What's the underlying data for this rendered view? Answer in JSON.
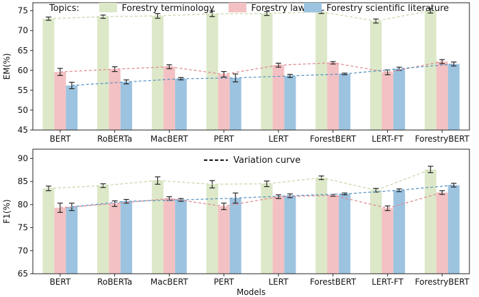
{
  "legend": {
    "title": "Topics:",
    "variation_label": "Variation curve"
  },
  "chart_data": [
    {
      "type": "bar",
      "panel": "top",
      "ylabel": "EM(%)",
      "xlabel": "",
      "ylim": [
        45,
        77
      ],
      "yticks": [
        45,
        50,
        55,
        60,
        65,
        70,
        75
      ],
      "categories": [
        "BERT",
        "RoBERTa",
        "MacBERT",
        "PERT",
        "LERT",
        "ForestBERT",
        "LERT-FT",
        "ForestryBERT"
      ],
      "series": [
        {
          "name": "Forestry terminology",
          "color": "#dce8c8",
          "line_color": "#c7d7a8",
          "values": [
            73.0,
            73.5,
            73.7,
            74.2,
            74.3,
            74.7,
            72.4,
            75.0
          ],
          "errors": [
            0.4,
            0.4,
            0.6,
            0.7,
            0.5,
            0.4,
            0.5,
            0.6
          ]
        },
        {
          "name": "Forestry law",
          "color": "#f3c1c3",
          "line_color": "#e08a8f",
          "values": [
            59.6,
            60.3,
            60.9,
            59.0,
            61.3,
            61.9,
            59.5,
            62.2
          ],
          "errors": [
            0.9,
            0.6,
            0.5,
            0.7,
            0.5,
            0.3,
            0.6,
            0.5
          ]
        },
        {
          "name": "Forestry scientific literature",
          "color": "#9cc3e0",
          "line_color": "#5a94c5",
          "values": [
            56.2,
            57.1,
            57.9,
            58.1,
            58.6,
            59.1,
            60.4,
            61.6
          ],
          "errors": [
            0.8,
            0.5,
            0.3,
            1.0,
            0.4,
            0.2,
            0.4,
            0.5
          ]
        }
      ]
    },
    {
      "type": "bar",
      "panel": "bottom",
      "ylabel": "F1(%)",
      "xlabel": "Models",
      "ylim": [
        65,
        92
      ],
      "yticks": [
        65,
        70,
        75,
        80,
        85,
        90
      ],
      "categories": [
        "BERT",
        "RoBERTa",
        "MacBERT",
        "PERT",
        "LERT",
        "ForestBERT",
        "LERT-FT",
        "ForestryBERT"
      ],
      "series": [
        {
          "name": "Forestry terminology",
          "color": "#dce8c8",
          "line_color": "#c7d7a8",
          "values": [
            83.5,
            84.1,
            85.2,
            84.4,
            84.5,
            85.8,
            83.1,
            87.6
          ],
          "errors": [
            0.5,
            0.4,
            0.8,
            0.8,
            0.6,
            0.4,
            0.4,
            0.7
          ]
        },
        {
          "name": "Forestry law",
          "color": "#f3c1c3",
          "line_color": "#e08a8f",
          "values": [
            79.3,
            80.2,
            81.3,
            79.6,
            81.7,
            82.0,
            79.2,
            82.6
          ],
          "errors": [
            1.0,
            0.6,
            0.4,
            0.7,
            0.4,
            0.2,
            0.5,
            0.4
          ]
        },
        {
          "name": "Forestry scientific literature",
          "color": "#9cc3e0",
          "line_color": "#5a94c5",
          "values": [
            79.5,
            80.7,
            81.0,
            81.4,
            81.9,
            82.3,
            83.1,
            84.2
          ],
          "errors": [
            0.8,
            0.4,
            0.3,
            1.1,
            0.4,
            0.2,
            0.3,
            0.4
          ]
        }
      ]
    }
  ]
}
